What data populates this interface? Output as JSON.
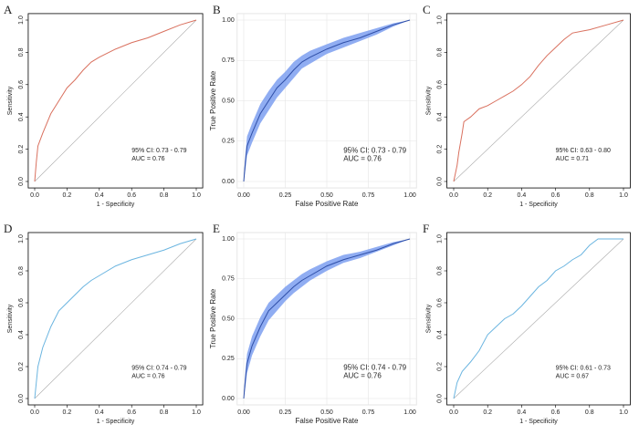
{
  "chart_data": [
    {
      "type": "line",
      "label": "A",
      "xlabel": "1 - Specificity",
      "ylabel": "Sensitivity",
      "annotations": [
        "AUC = 0.76",
        "95% CI: 0.73 - 0.79"
      ],
      "color": "#d9705e",
      "grid": false,
      "x": [
        0,
        0.01,
        0.02,
        0.05,
        0.1,
        0.15,
        0.2,
        0.25,
        0.3,
        0.35,
        0.4,
        0.5,
        0.6,
        0.7,
        0.8,
        0.9,
        1
      ],
      "values": [
        0,
        0.12,
        0.22,
        0.3,
        0.42,
        0.5,
        0.58,
        0.63,
        0.69,
        0.74,
        0.77,
        0.82,
        0.86,
        0.89,
        0.93,
        0.97,
        1
      ],
      "xlim": [
        0,
        1
      ],
      "ylim": [
        0,
        1
      ],
      "xticks": [
        {
          "value": 0,
          "label": "0.0"
        },
        0.2,
        0.4,
        0.6,
        0.8,
        {
          "value": 1,
          "label": "1.0"
        }
      ],
      "yticks": [
        {
          "value": 0,
          "label": "0.0"
        },
        0.2,
        0.4,
        0.6,
        0.8,
        {
          "value": 1,
          "label": "1.0"
        }
      ]
    },
    {
      "type": "ribbon",
      "label": "B",
      "xlabel": "False Positive Rate",
      "ylabel": "True Positive Rate",
      "annotations": [
        "AUC = 0.76",
        "95% CI: 0.73 - 0.79"
      ],
      "color": "#2f4fa8",
      "fill": "#7d9ff0",
      "grid": true,
      "x": [
        0,
        0.01,
        0.02,
        0.05,
        0.1,
        0.15,
        0.2,
        0.25,
        0.3,
        0.35,
        0.4,
        0.5,
        0.6,
        0.7,
        0.8,
        0.9,
        1
      ],
      "values": [
        0,
        0.12,
        0.22,
        0.3,
        0.42,
        0.5,
        0.58,
        0.63,
        0.69,
        0.74,
        0.77,
        0.82,
        0.86,
        0.89,
        0.93,
        0.97,
        1
      ],
      "lower": [
        0,
        0.07,
        0.16,
        0.24,
        0.36,
        0.44,
        0.52,
        0.58,
        0.64,
        0.7,
        0.73,
        0.79,
        0.83,
        0.87,
        0.91,
        0.96,
        1
      ],
      "upper": [
        0.03,
        0.17,
        0.28,
        0.36,
        0.48,
        0.56,
        0.63,
        0.68,
        0.74,
        0.78,
        0.81,
        0.85,
        0.89,
        0.92,
        0.95,
        0.98,
        1
      ],
      "xlim": [
        0,
        1
      ],
      "ylim": [
        0,
        1
      ],
      "xticks": [
        {
          "value": 0,
          "label": "0.00"
        },
        0.25,
        {
          "value": 0.5,
          "label": "0.50"
        },
        0.75,
        {
          "value": 1,
          "label": "1.00"
        }
      ],
      "yticks": [
        {
          "value": 0,
          "label": "0.00"
        },
        0.25,
        {
          "value": 0.5,
          "label": "0.50"
        },
        0.75,
        {
          "value": 1,
          "label": "1.00"
        }
      ]
    },
    {
      "type": "line",
      "label": "C",
      "xlabel": "1 - Specificity",
      "ylabel": "Sensitivity",
      "annotations": [
        "AUC = 0.71",
        "95% CI: 0.63 - 0.80"
      ],
      "color": "#d9705e",
      "grid": false,
      "x": [
        0,
        0.02,
        0.03,
        0.05,
        0.06,
        0.1,
        0.15,
        0.2,
        0.25,
        0.3,
        0.35,
        0.4,
        0.45,
        0.5,
        0.55,
        0.6,
        0.65,
        0.7,
        0.8,
        0.9,
        1
      ],
      "values": [
        0,
        0.1,
        0.18,
        0.3,
        0.37,
        0.4,
        0.45,
        0.47,
        0.5,
        0.53,
        0.56,
        0.6,
        0.65,
        0.72,
        0.78,
        0.83,
        0.88,
        0.92,
        0.94,
        0.97,
        1
      ],
      "xlim": [
        0,
        1
      ],
      "ylim": [
        0,
        1
      ],
      "xticks": [
        {
          "value": 0,
          "label": "0.0"
        },
        0.2,
        0.4,
        0.6,
        0.8,
        {
          "value": 1,
          "label": "1.0"
        }
      ],
      "yticks": [
        {
          "value": 0,
          "label": "0.0"
        },
        0.2,
        0.4,
        0.6,
        0.8,
        {
          "value": 1,
          "label": "1.0"
        }
      ]
    },
    {
      "type": "line",
      "label": "D",
      "xlabel": "1 - Specificity",
      "ylabel": "Sensitivity",
      "annotations": [
        "AUC = 0.76",
        "95% CI: 0.74 - 0.79"
      ],
      "color": "#6bb5e0",
      "grid": false,
      "x": [
        0,
        0.01,
        0.02,
        0.05,
        0.1,
        0.15,
        0.2,
        0.25,
        0.3,
        0.35,
        0.4,
        0.5,
        0.6,
        0.7,
        0.8,
        0.9,
        1
      ],
      "values": [
        0,
        0.1,
        0.2,
        0.32,
        0.45,
        0.55,
        0.6,
        0.65,
        0.7,
        0.74,
        0.77,
        0.83,
        0.87,
        0.9,
        0.93,
        0.97,
        1
      ],
      "xlim": [
        0,
        1
      ],
      "ylim": [
        0,
        1
      ],
      "xticks": [
        {
          "value": 0,
          "label": "0.0"
        },
        0.2,
        0.4,
        0.6,
        0.8,
        {
          "value": 1,
          "label": "1.0"
        }
      ],
      "yticks": [
        {
          "value": 0,
          "label": "0.0"
        },
        0.2,
        0.4,
        0.6,
        0.8,
        {
          "value": 1,
          "label": "1.0"
        }
      ]
    },
    {
      "type": "ribbon",
      "label": "E",
      "xlabel": "False Positive Rate",
      "ylabel": "True Positive Rate",
      "annotations": [
        "AUC = 0.76",
        "95% CI: 0.74 - 0.79"
      ],
      "color": "#2f4fa8",
      "fill": "#7d9ff0",
      "grid": true,
      "x": [
        0,
        0.01,
        0.02,
        0.05,
        0.1,
        0.15,
        0.2,
        0.25,
        0.3,
        0.35,
        0.4,
        0.5,
        0.6,
        0.7,
        0.8,
        0.9,
        1
      ],
      "values": [
        0,
        0.12,
        0.22,
        0.33,
        0.45,
        0.55,
        0.6,
        0.65,
        0.7,
        0.74,
        0.77,
        0.83,
        0.87,
        0.9,
        0.93,
        0.97,
        1
      ],
      "lower": [
        0,
        0.07,
        0.16,
        0.27,
        0.39,
        0.49,
        0.55,
        0.61,
        0.66,
        0.7,
        0.74,
        0.8,
        0.85,
        0.88,
        0.92,
        0.96,
        1
      ],
      "upper": [
        0.03,
        0.17,
        0.28,
        0.39,
        0.51,
        0.6,
        0.65,
        0.7,
        0.74,
        0.78,
        0.81,
        0.86,
        0.9,
        0.92,
        0.95,
        0.98,
        1
      ],
      "xlim": [
        0,
        1
      ],
      "ylim": [
        0,
        1
      ],
      "xticks": [
        {
          "value": 0,
          "label": "0.00"
        },
        0.25,
        {
          "value": 0.5,
          "label": "0.50"
        },
        0.75,
        {
          "value": 1,
          "label": "1.00"
        }
      ],
      "yticks": [
        {
          "value": 0,
          "label": "0.00"
        },
        0.25,
        {
          "value": 0.5,
          "label": "0.50"
        },
        0.75,
        {
          "value": 1,
          "label": "1.00"
        }
      ]
    },
    {
      "type": "line",
      "label": "F",
      "xlabel": "1 - Specificity",
      "ylabel": "Sensitivity",
      "annotations": [
        "AUC = 0.67",
        "95% CI: 0.61 - 0.73"
      ],
      "color": "#6bb5e0",
      "grid": false,
      "x": [
        0,
        0.02,
        0.05,
        0.1,
        0.15,
        0.2,
        0.25,
        0.3,
        0.35,
        0.4,
        0.45,
        0.5,
        0.55,
        0.6,
        0.65,
        0.7,
        0.75,
        0.8,
        0.85,
        0.9,
        1
      ],
      "values": [
        0,
        0.1,
        0.17,
        0.23,
        0.3,
        0.4,
        0.45,
        0.5,
        0.53,
        0.58,
        0.64,
        0.7,
        0.74,
        0.8,
        0.83,
        0.87,
        0.9,
        0.96,
        1,
        1,
        1
      ],
      "xlim": [
        0,
        1
      ],
      "ylim": [
        0,
        1
      ],
      "xticks": [
        {
          "value": 0,
          "label": "0.0"
        },
        0.2,
        0.4,
        0.6,
        0.8,
        {
          "value": 1,
          "label": "1.0"
        }
      ],
      "yticks": [
        {
          "value": 0,
          "label": "0.0"
        },
        0.2,
        0.4,
        0.6,
        0.8,
        {
          "value": 1,
          "label": "1.0"
        }
      ]
    }
  ]
}
